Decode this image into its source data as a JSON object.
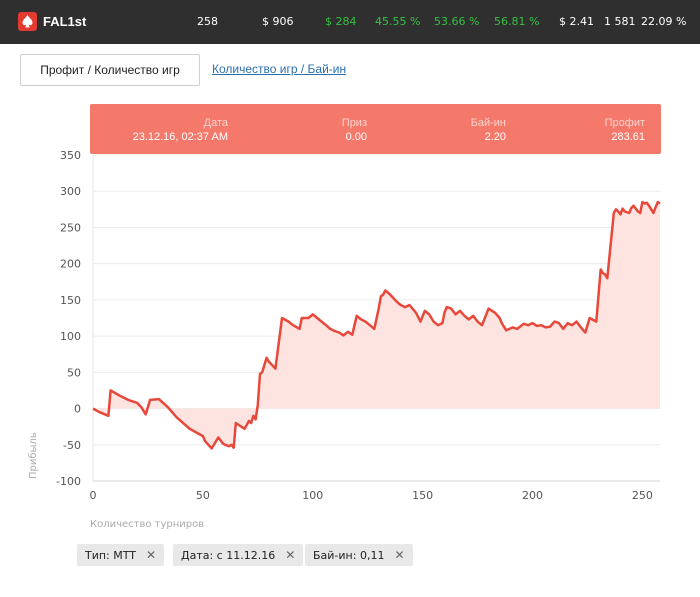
{
  "header": {
    "player_name": "FAL1st",
    "stats": [
      {
        "value": "258",
        "color": "#ffffff"
      },
      {
        "value": "$ 906",
        "color": "#ffffff"
      },
      {
        "value": "$ 284",
        "color": "#35c042"
      },
      {
        "value": "45.55 %",
        "color": "#35c042"
      },
      {
        "value": "53.66 %",
        "color": "#35c042"
      },
      {
        "value": "56.81 %",
        "color": "#35c042"
      },
      {
        "value": "$ 2.41",
        "color": "#ffffff"
      },
      {
        "value": "1 581",
        "color": "#ffffff"
      },
      {
        "value": "22.09 %",
        "color": "#ffffff"
      }
    ]
  },
  "tabs": {
    "active_label": "Профит / Количество игр",
    "link_label": "Количество игр / Бай-ин"
  },
  "tooltip": {
    "date_header": "Дата",
    "date_value": "23.12.16, 02:37 AM",
    "prize_header": "Приз",
    "prize_value": "0.00",
    "buyin_header": "Бай-ин",
    "buyin_value": "2.20",
    "profit_header": "Профит",
    "profit_value": "283.61"
  },
  "filters": [
    {
      "label": "Тип: MTT"
    },
    {
      "label": "Дата: с 11.12.16"
    },
    {
      "label": "Бай-ин: 0,11"
    }
  ],
  "chart_data": {
    "type": "area",
    "xlabel": "Количество турниров",
    "ylabel": "Прибыль",
    "xlim": [
      0,
      258
    ],
    "ylim": [
      -100,
      350
    ],
    "x_ticks": [
      0,
      50,
      100,
      150,
      200,
      250
    ],
    "y_ticks": [
      -100,
      -50,
      0,
      50,
      100,
      150,
      200,
      250,
      300,
      350
    ],
    "grid": "horizontal",
    "line_color": "#e8483a",
    "fill_color": "#fde4e1",
    "series": [
      {
        "x": [
          0,
          3,
          7,
          8,
          12,
          16,
          20,
          22,
          24,
          26,
          30,
          34,
          38,
          44,
          50,
          51,
          54,
          57,
          59,
          60,
          62,
          63,
          64,
          65,
          66,
          67,
          69,
          71,
          72,
          73,
          74,
          75,
          76,
          77,
          79,
          80,
          83,
          86,
          89,
          91,
          94,
          95,
          98,
          100,
          102,
          104,
          106,
          108,
          110,
          112,
          114,
          116,
          118,
          120,
          122,
          124,
          126,
          128,
          130,
          131,
          132,
          133,
          135,
          138,
          140,
          142,
          144,
          147,
          149,
          151,
          153,
          155,
          157,
          159,
          160,
          161,
          163,
          165,
          167,
          169,
          171,
          173,
          175,
          177,
          180,
          183,
          185,
          186,
          188,
          191,
          193,
          196,
          198,
          200,
          202,
          204,
          206,
          208,
          210,
          212,
          214,
          216,
          218,
          220,
          222,
          224,
          226,
          229,
          231,
          232,
          233,
          234,
          237,
          238,
          239,
          240,
          241,
          242,
          244,
          245,
          246,
          248,
          249,
          250,
          251,
          252,
          253,
          254,
          255,
          256,
          257,
          258
        ],
        "y": [
          0,
          -5,
          -10,
          25,
          18,
          12,
          8,
          2,
          -8,
          12,
          13,
          2,
          -12,
          -28,
          -38,
          -45,
          -55,
          -40,
          -48,
          -50,
          -52,
          -50,
          -54,
          -20,
          -22,
          -24,
          -28,
          -17,
          -20,
          -10,
          -15,
          5,
          48,
          50,
          70,
          65,
          55,
          125,
          120,
          115,
          110,
          125,
          125,
          130,
          125,
          120,
          115,
          110,
          107,
          105,
          101,
          106,
          102,
          128,
          123,
          120,
          115,
          110,
          138,
          155,
          157,
          163,
          158,
          148,
          143,
          140,
          143,
          132,
          120,
          135,
          130,
          120,
          115,
          118,
          133,
          140,
          138,
          130,
          135,
          128,
          123,
          128,
          120,
          115,
          138,
          132,
          125,
          118,
          108,
          112,
          110,
          117,
          115,
          118,
          114,
          115,
          112,
          113,
          120,
          118,
          110,
          118,
          115,
          120,
          112,
          105,
          125,
          120,
          192,
          187,
          185,
          180,
          270,
          275,
          272,
          268,
          276,
          272,
          270,
          277,
          280,
          272,
          270,
          285,
          283,
          284,
          280,
          275,
          270,
          278,
          285,
          283
        ]
      }
    ]
  }
}
